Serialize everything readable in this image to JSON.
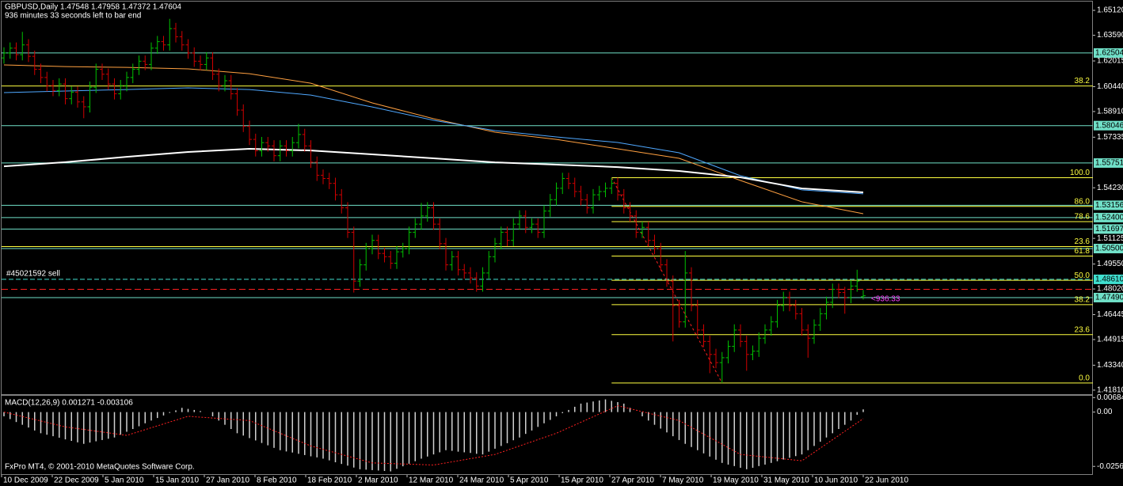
{
  "header": {
    "line1": "GBPUSD,Daily  1.47548 1.47958 1.47372 1.47604",
    "line2": "936 minutes 33 seconds left to bar end"
  },
  "footer": "FxPro MT4, © 2001-2010 MetaQuotes Software Corp.",
  "chart_data": [
    {
      "type": "ohlc",
      "up_color": "#00c000",
      "down_color": "#d00000",
      "x_labels": [
        "10 Dec 2009",
        "22 Dec 2009",
        "5 Jan 2010",
        "15 Jan 2010",
        "27 Jan 2010",
        "8 Feb 2010",
        "18 Feb 2010",
        "2 Mar 2010",
        "12 Mar 2010",
        "24 Mar 2010",
        "5 Apr 2010",
        "15 Apr 2010",
        "27 Apr 2010",
        "7 May 2010",
        "19 May 2010",
        "31 May 2010",
        "10 Jun 2010",
        "22 Jun 2010"
      ],
      "open": [
        1.622,
        1.625,
        1.628,
        1.624,
        1.63,
        1.623,
        1.615,
        1.61,
        1.605,
        1.602,
        1.606,
        1.597,
        1.601,
        1.595,
        1.592,
        1.604,
        1.615,
        1.612,
        1.606,
        1.6,
        1.605,
        1.61,
        1.615,
        1.62,
        1.618,
        1.628,
        1.632,
        1.63,
        1.64,
        1.635,
        1.63,
        1.625,
        1.62,
        1.618,
        1.622,
        1.612,
        1.605,
        1.608,
        1.6,
        1.59,
        1.58,
        1.572,
        1.565,
        1.57,
        1.568,
        1.562,
        1.568,
        1.565,
        1.57,
        1.575,
        1.568,
        1.558,
        1.55,
        1.548,
        1.545,
        1.538,
        1.53,
        1.515,
        1.485,
        1.495,
        1.505,
        1.51,
        1.502,
        1.5,
        1.496,
        1.503,
        1.505,
        1.515,
        1.52,
        1.525,
        1.53,
        1.52,
        1.508,
        1.495,
        1.5,
        1.492,
        1.49,
        1.487,
        1.482,
        1.49,
        1.5,
        1.508,
        1.515,
        1.51,
        1.52,
        1.525,
        1.518,
        1.52,
        1.515,
        1.528,
        1.535,
        1.542,
        1.548,
        1.545,
        1.54,
        1.535,
        1.53,
        1.538,
        1.54,
        1.542,
        1.545,
        1.538,
        1.53,
        1.525,
        1.515,
        1.518,
        1.51,
        1.505,
        1.495,
        1.485,
        1.47,
        1.46,
        1.49,
        1.47,
        1.455,
        1.448,
        1.44,
        1.435,
        1.438,
        1.445,
        1.455,
        1.448,
        1.44,
        1.442,
        1.45,
        1.455,
        1.46,
        1.47,
        1.475,
        1.47,
        1.465,
        1.455,
        1.45,
        1.458,
        1.465,
        1.472,
        1.48,
        1.478,
        1.475,
        1.482,
        1.47548
      ],
      "high": [
        1.6285,
        1.6315,
        1.6315,
        1.638,
        1.6335,
        1.6265,
        1.6185,
        1.6135,
        1.6085,
        1.6095,
        1.6095,
        1.6045,
        1.6045,
        1.5985,
        1.6075,
        1.6185,
        1.6185,
        1.6155,
        1.6095,
        1.6085,
        1.6135,
        1.6185,
        1.6235,
        1.6235,
        1.6315,
        1.6355,
        1.6355,
        1.646,
        1.6435,
        1.6385,
        1.6335,
        1.6285,
        1.6235,
        1.6255,
        1.6255,
        1.6155,
        1.6115,
        1.6115,
        1.6035,
        1.5935,
        1.5835,
        1.5755,
        1.5735,
        1.5735,
        1.5715,
        1.5715,
        1.5715,
        1.5735,
        1.5815,
        1.5785,
        1.5715,
        1.5615,
        1.5535,
        1.5515,
        1.5485,
        1.5415,
        1.5335,
        1.5185,
        1.4985,
        1.5085,
        1.5135,
        1.5135,
        1.5055,
        1.5035,
        1.5065,
        1.5085,
        1.5185,
        1.5235,
        1.533,
        1.5335,
        1.5335,
        1.5235,
        1.5115,
        1.5035,
        1.5035,
        1.4955,
        1.4935,
        1.4905,
        1.4935,
        1.5035,
        1.5115,
        1.5185,
        1.5185,
        1.5235,
        1.5285,
        1.5285,
        1.5235,
        1.5235,
        1.5315,
        1.5385,
        1.5455,
        1.5515,
        1.5515,
        1.5485,
        1.5435,
        1.5385,
        1.5415,
        1.5435,
        1.5455,
        1.5485,
        1.5485,
        1.5415,
        1.5335,
        1.5285,
        1.5215,
        1.5215,
        1.5135,
        1.5085,
        1.4985,
        1.4885,
        1.4735,
        1.5035,
        1.4935,
        1.4735,
        1.4585,
        1.4515,
        1.4435,
        1.4415,
        1.4485,
        1.4585,
        1.4585,
        1.4515,
        1.4455,
        1.4535,
        1.4585,
        1.4635,
        1.4735,
        1.4785,
        1.4785,
        1.4735,
        1.4685,
        1.4585,
        1.4615,
        1.4685,
        1.4755,
        1.4835,
        1.4835,
        1.4815,
        1.4855,
        1.492,
        1.47958
      ],
      "low": [
        1.6185,
        1.6215,
        1.6205,
        1.6205,
        1.6195,
        1.6115,
        1.6065,
        1.6015,
        1.5985,
        1.5985,
        1.5935,
        1.5935,
        1.5915,
        1.585,
        1.5885,
        1.6005,
        1.6085,
        1.6025,
        1.5965,
        1.5965,
        1.6015,
        1.6065,
        1.6115,
        1.6145,
        1.6145,
        1.6245,
        1.6265,
        1.6265,
        1.6315,
        1.6265,
        1.6215,
        1.6165,
        1.6145,
        1.6145,
        1.6085,
        1.6015,
        1.6015,
        1.5965,
        1.5865,
        1.5765,
        1.5685,
        1.5615,
        1.5615,
        1.5645,
        1.5585,
        1.5585,
        1.5615,
        1.5615,
        1.5665,
        1.5645,
        1.5545,
        1.5465,
        1.5445,
        1.5415,
        1.5345,
        1.5265,
        1.5115,
        1.478,
        1.4815,
        1.4915,
        1.5015,
        1.4985,
        1.4965,
        1.4925,
        1.4925,
        1.4995,
        1.5015,
        1.5115,
        1.5165,
        1.5215,
        1.5165,
        1.5045,
        1.4915,
        1.4915,
        1.4885,
        1.4865,
        1.4835,
        1.4785,
        1.4785,
        1.4865,
        1.4965,
        1.5045,
        1.5065,
        1.5065,
        1.5165,
        1.5145,
        1.5145,
        1.5115,
        1.5115,
        1.5245,
        1.5315,
        1.5385,
        1.5415,
        1.5365,
        1.5315,
        1.5265,
        1.5265,
        1.5345,
        1.5365,
        1.5385,
        1.5345,
        1.5265,
        1.5215,
        1.5115,
        1.5115,
        1.5065,
        1.5015,
        1.4915,
        1.4815,
        1.448,
        1.4565,
        1.4565,
        1.4665,
        1.4515,
        1.4445,
        1.4285,
        1.4315,
        1.4225,
        1.4345,
        1.4415,
        1.4445,
        1.43,
        1.4365,
        1.4385,
        1.4465,
        1.4515,
        1.4565,
        1.4665,
        1.4665,
        1.4615,
        1.4515,
        1.438,
        1.4465,
        1.4545,
        1.4615,
        1.4685,
        1.4745,
        1.465,
        1.4715,
        1.4785,
        1.47372
      ],
      "close": [
        1.625,
        1.628,
        1.624,
        1.63,
        1.623,
        1.615,
        1.61,
        1.605,
        1.602,
        1.606,
        1.597,
        1.601,
        1.595,
        1.592,
        1.604,
        1.615,
        1.612,
        1.606,
        1.6,
        1.605,
        1.61,
        1.615,
        1.62,
        1.618,
        1.628,
        1.632,
        1.63,
        1.64,
        1.635,
        1.63,
        1.625,
        1.62,
        1.618,
        1.622,
        1.612,
        1.605,
        1.608,
        1.6,
        1.59,
        1.58,
        1.572,
        1.565,
        1.57,
        1.568,
        1.562,
        1.568,
        1.565,
        1.57,
        1.575,
        1.568,
        1.558,
        1.55,
        1.548,
        1.545,
        1.538,
        1.53,
        1.515,
        1.485,
        1.495,
        1.505,
        1.51,
        1.502,
        1.5,
        1.496,
        1.503,
        1.505,
        1.515,
        1.52,
        1.525,
        1.53,
        1.52,
        1.508,
        1.495,
        1.5,
        1.492,
        1.49,
        1.487,
        1.482,
        1.49,
        1.5,
        1.508,
        1.515,
        1.51,
        1.52,
        1.525,
        1.518,
        1.52,
        1.515,
        1.528,
        1.535,
        1.542,
        1.548,
        1.545,
        1.54,
        1.535,
        1.53,
        1.538,
        1.54,
        1.542,
        1.545,
        1.538,
        1.53,
        1.525,
        1.515,
        1.518,
        1.51,
        1.505,
        1.495,
        1.485,
        1.47,
        1.46,
        1.49,
        1.47,
        1.455,
        1.448,
        1.44,
        1.435,
        1.438,
        1.445,
        1.455,
        1.448,
        1.44,
        1.442,
        1.45,
        1.455,
        1.46,
        1.47,
        1.475,
        1.47,
        1.465,
        1.455,
        1.45,
        1.458,
        1.465,
        1.472,
        1.48,
        1.478,
        1.475,
        1.482,
        1.485,
        1.47604
      ],
      "moving_averages": [
        {
          "color": "#ffa040",
          "values": [
            1.6177,
            1.6167,
            1.6162,
            1.6153,
            1.6123,
            1.6065,
            1.5944,
            1.5847,
            1.5764,
            1.572,
            1.5662,
            1.5604,
            1.5468,
            1.5337,
            1.5264
          ]
        },
        {
          "color": "#4fa8ff",
          "values": [
            1.6007,
            1.6017,
            1.6026,
            1.6036,
            1.6026,
            1.5992,
            1.5919,
            1.5837,
            1.5774,
            1.5735,
            1.5701,
            1.5638,
            1.5497,
            1.541,
            1.5386
          ]
        },
        {
          "color": "#ffffff",
          "values": [
            1.5555,
            1.558,
            1.5613,
            1.5643,
            1.5662,
            1.5652,
            1.5628,
            1.5604,
            1.5579,
            1.5565,
            1.555,
            1.5526,
            1.5487,
            1.5419,
            1.5395
          ]
        }
      ],
      "ylim": [
        1.4161,
        1.6561
      ],
      "yticks": [
        {
          "value": 1.6512,
          "label": "1.65120"
        },
        {
          "value": 1.6359,
          "label": "1.63590"
        },
        {
          "value": 1.62015,
          "label": "1.62015"
        },
        {
          "value": 1.6044,
          "label": "1.60440"
        },
        {
          "value": 1.5891,
          "label": "1.58910"
        },
        {
          "value": 1.57335,
          "label": "1.57335"
        },
        {
          "value": 1.5423,
          "label": "1.54230"
        },
        {
          "value": 1.51125,
          "label": "1.51125"
        },
        {
          "value": 1.4955,
          "label": "1.49550"
        },
        {
          "value": 1.4802,
          "label": "1.48020"
        },
        {
          "value": 1.46445,
          "label": "1.46445"
        },
        {
          "value": 1.44915,
          "label": "1.44915"
        },
        {
          "value": 1.4334,
          "label": "1.43340"
        },
        {
          "value": 1.4181,
          "label": "1.41810"
        }
      ],
      "level_color": "#70e0c8",
      "levels": [
        {
          "value": 1.62504,
          "label": "1.62504"
        },
        {
          "value": 1.58046,
          "label": "1.58046"
        },
        {
          "value": 1.55751,
          "label": "1.55751"
        },
        {
          "value": 1.53156,
          "label": "1.53156"
        },
        {
          "value": 1.524,
          "label": "1.52400"
        },
        {
          "value": 1.51697,
          "label": "1.51697"
        },
        {
          "value": 1.505,
          "label": "1.50500"
        },
        {
          "value": 1.4749,
          "label": "1.47490"
        }
      ],
      "order": {
        "text": "#45021592 sell",
        "price": {
          "value": 1.4861,
          "label": "1.48610"
        },
        "color": "#40e0d0"
      },
      "stop_line": {
        "value": 1.48,
        "color": "#ff2020"
      },
      "countdown": {
        "text": "<936:33",
        "color": "#ff40ff"
      },
      "fib_color": "#ffff40",
      "fib": [
        {
          "price": 1.5485,
          "label": "100.0"
        },
        {
          "price": 1.5309,
          "label": "86.0"
        },
        {
          "price": 1.5215,
          "label": "78.6"
        },
        {
          "price": 1.5004,
          "label": "61.8"
        },
        {
          "price": 1.4855,
          "label": "50.0"
        },
        {
          "price": 1.4706,
          "label": "38.2"
        },
        {
          "price": 1.4522,
          "label": "23.6"
        },
        {
          "price": 1.4225,
          "label": "0.0"
        }
      ],
      "fib_wide": [
        {
          "price": 1.6048,
          "label": "38.2"
        },
        {
          "price": 1.5062,
          "label": "23.6"
        }
      ]
    },
    {
      "type": "macd",
      "title": "MACD(12,26,9) 0.001271 -0.003106",
      "histogram_color": "#d0d0d0",
      "signal_color": "#ff2020",
      "histogram": [
        -0.002,
        -0.0033,
        -0.0047,
        -0.006,
        -0.0073,
        -0.0087,
        -0.01,
        -0.0107,
        -0.0114,
        -0.0121,
        -0.0129,
        -0.0136,
        -0.0143,
        -0.015,
        -0.0144,
        -0.0138,
        -0.0132,
        -0.0126,
        -0.012,
        -0.0107,
        -0.0093,
        -0.008,
        -0.0067,
        -0.0053,
        -0.004,
        -0.0028,
        -0.0016,
        -0.0004,
        0.0008,
        0.002,
        0.0015,
        0.001,
        0.0005,
        0.0,
        -0.002,
        -0.004,
        -0.006,
        -0.008,
        -0.01,
        -0.0111,
        -0.0123,
        -0.0134,
        -0.0146,
        -0.0157,
        -0.0169,
        -0.018,
        -0.0186,
        -0.0191,
        -0.0197,
        -0.0203,
        -0.0209,
        -0.0214,
        -0.022,
        -0.0228,
        -0.0237,
        -0.0245,
        -0.0253,
        -0.0262,
        -0.027,
        -0.0272,
        -0.0274,
        -0.0276,
        -0.0278,
        -0.028,
        -0.0268,
        -0.0256,
        -0.0244,
        -0.0232,
        -0.022,
        -0.021,
        -0.02,
        -0.019,
        -0.018,
        -0.0183,
        -0.0187,
        -0.019,
        -0.0193,
        -0.0197,
        -0.02,
        -0.0187,
        -0.0173,
        -0.016,
        -0.0147,
        -0.0133,
        -0.012,
        -0.0103,
        -0.0087,
        -0.007,
        -0.0053,
        -0.0037,
        -0.002,
        -0.0005,
        0.001,
        0.0025,
        0.004,
        0.0045,
        0.005,
        0.0055,
        0.006,
        0.0053,
        0.0047,
        0.004,
        0.002,
        0.0,
        -0.002,
        -0.004,
        -0.006,
        -0.0078,
        -0.0096,
        -0.0114,
        -0.0132,
        -0.015,
        -0.0165,
        -0.018,
        -0.0195,
        -0.021,
        -0.0225,
        -0.024,
        -0.0248,
        -0.0255,
        -0.0263,
        -0.027,
        -0.0263,
        -0.0255,
        -0.0248,
        -0.024,
        -0.0232,
        -0.0224,
        -0.0216,
        -0.0208,
        -0.02,
        -0.018,
        -0.016,
        -0.014,
        -0.012,
        -0.01,
        -0.008,
        -0.006,
        -0.004,
        -0.0013,
        0.001271
      ],
      "signal": [
        0.0,
        -0.007,
        -0.011,
        -0.002,
        -0.004,
        -0.016,
        -0.024,
        -0.025,
        -0.02,
        -0.01,
        0.003,
        -0.004,
        -0.02,
        -0.023,
        -0.003106
      ],
      "ylim": [
        -0.0293,
        0.0077
      ],
      "yticks": [
        0.00684,
        {
          "value": 0,
          "label": "0.00"
        },
        -0.02565
      ]
    }
  ]
}
